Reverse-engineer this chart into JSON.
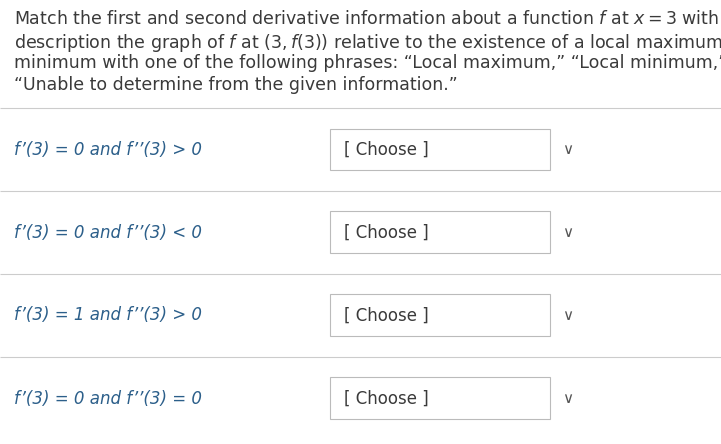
{
  "bg_color": "#ffffff",
  "text_color": "#3a3a3a",
  "label_color": "#2c5f8a",
  "header_text_lines": [
    "Match the first and second derivative information about a function $f$ at $x = 3$ with the",
    "description the graph of $f$ at $(3, f(3))$ relative to the existence of a local maximum or",
    "minimum with one of the following phrases: “Local maximum,” “Local minimum,” “Neither,” or",
    "“Unable to determine from the given information.”"
  ],
  "rows": [
    {
      "label_math": "f’(3) = 0 and f’’(3) > 0"
    },
    {
      "label_math": "f’(3) = 0 and f’’(3) < 0"
    },
    {
      "label_math": "f’(3) = 1 and f’’(3) > 0"
    },
    {
      "label_math": "f’(3) = 0 and f’’(3) = 0"
    }
  ],
  "choose_text": "[ Choose ]",
  "divider_color": "#cccccc",
  "box_edge_color": "#bbbbbb",
  "header_fontsize": 12.5,
  "label_fontsize": 12.0,
  "choose_fontsize": 12.0,
  "arrow_color": "#555555",
  "figwidth": 7.21,
  "figheight": 4.44,
  "dpi": 100
}
